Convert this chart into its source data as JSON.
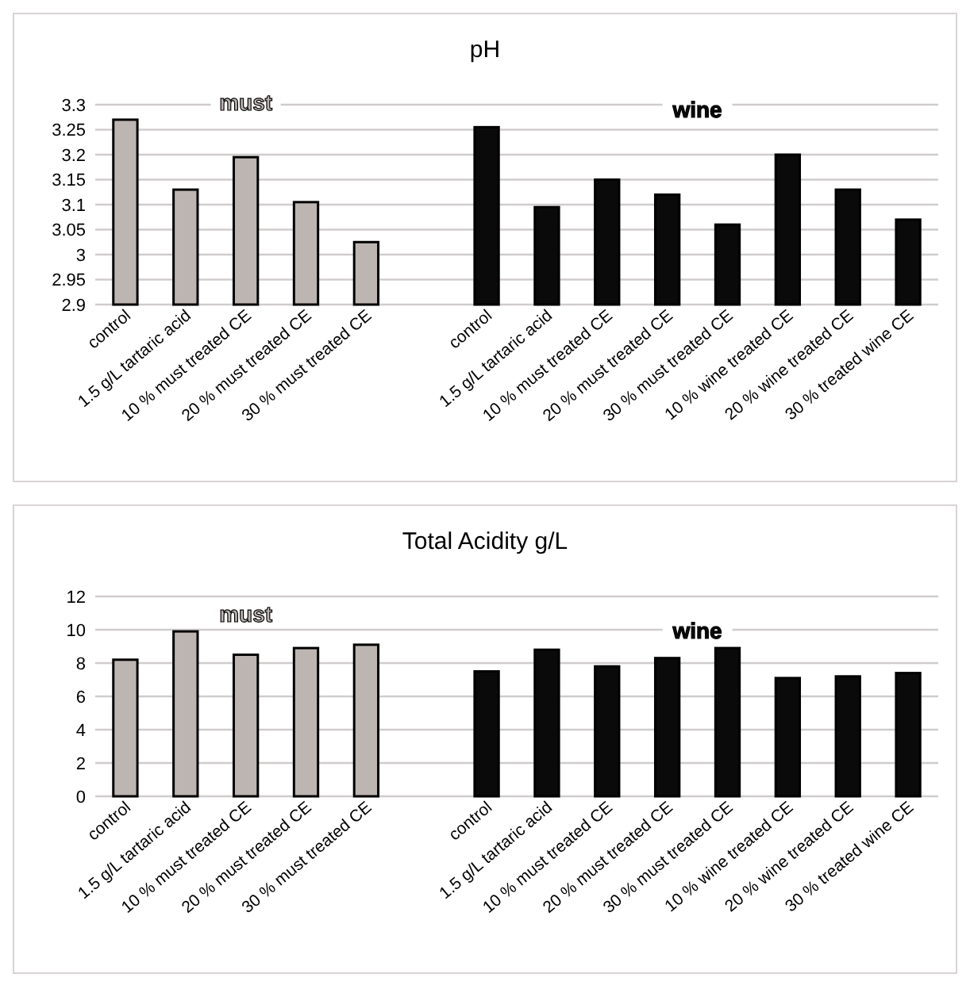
{
  "chart_data": [
    {
      "type": "bar",
      "title": "pH",
      "categories": [
        "control",
        "1.5 g/L tartaric acid",
        "10 % must treated CE",
        "20 % must treated CE",
        "30 % must treated CE",
        null,
        "control",
        "1.5 g/L tartaric acid",
        "10 % must treated CE",
        "20 % must treated CE",
        "30 % must treated CE",
        "10 % wine treated CE",
        "20 % wine treated CE",
        "30 % treated wine CE"
      ],
      "series": [
        {
          "name": "must",
          "color": "#bdb5b2",
          "values": [
            3.27,
            3.13,
            3.195,
            3.105,
            3.025,
            null,
            null,
            null,
            null,
            null,
            null,
            null,
            null,
            null
          ]
        },
        {
          "name": "wine",
          "color": "#0a0a0a",
          "values": [
            null,
            null,
            null,
            null,
            null,
            null,
            3.255,
            3.095,
            3.15,
            3.12,
            3.06,
            3.2,
            3.13,
            3.07
          ]
        }
      ],
      "ylim": [
        2.9,
        3.3
      ],
      "yticks": [
        2.9,
        2.95,
        3,
        3.05,
        3.1,
        3.15,
        3.2,
        3.25,
        3.3
      ],
      "grid": "y"
    },
    {
      "type": "bar",
      "title": "Total Acidity g/L",
      "categories": [
        "control",
        "1.5 g/L tartaric acid",
        "10 % must treated CE",
        "20 % must treated CE",
        "30 % must treated CE",
        null,
        "control",
        "1.5 g/L tartaric acid",
        "10 % must treated CE",
        "20 % must treated CE",
        "30 % must treated CE",
        "10 % wine treated CE",
        "20 % wine treated CE",
        "30 % treated wine CE"
      ],
      "series": [
        {
          "name": "must",
          "color": "#bdb5b2",
          "values": [
            8.2,
            9.9,
            8.5,
            8.9,
            9.1,
            null,
            null,
            null,
            null,
            null,
            null,
            null,
            null,
            null
          ]
        },
        {
          "name": "wine",
          "color": "#0a0a0a",
          "values": [
            null,
            null,
            null,
            null,
            null,
            null,
            7.5,
            8.8,
            7.8,
            8.3,
            8.9,
            7.1,
            7.2,
            7.4
          ]
        }
      ],
      "ylim": [
        0,
        12
      ],
      "yticks": [
        0,
        2,
        4,
        6,
        8,
        10,
        12
      ],
      "grid": "y"
    }
  ]
}
